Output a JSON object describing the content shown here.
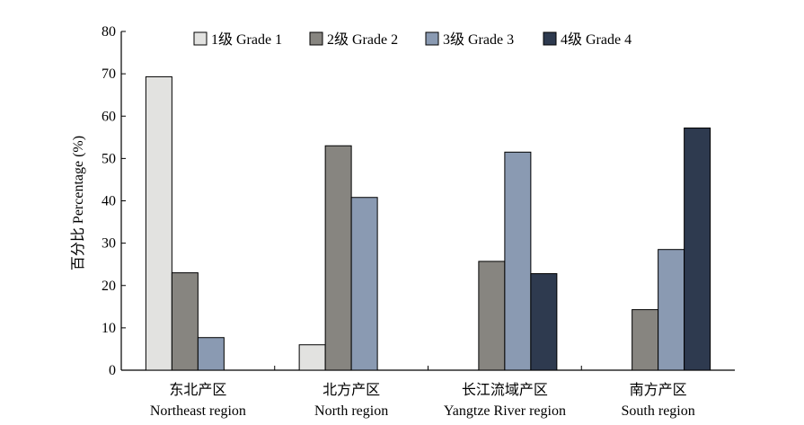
{
  "chart_data": {
    "type": "bar",
    "title": "",
    "ylabel": "百分比 Percentage (%)",
    "xlabel": "",
    "ylim": [
      0,
      80
    ],
    "yticks": [
      0,
      10,
      20,
      30,
      40,
      50,
      60,
      70,
      80
    ],
    "grid": false,
    "legend_position": "top",
    "categories": [
      {
        "zh": "东北产区",
        "en": "Northeast region"
      },
      {
        "zh": "北方产区",
        "en": "North region"
      },
      {
        "zh": "长江流域产区",
        "en": "Yangtze River region"
      },
      {
        "zh": "南方产区",
        "en": "South region"
      }
    ],
    "series": [
      {
        "name": "1级 Grade 1",
        "color": "#e2e2e0",
        "values": [
          69.3,
          6.0,
          null,
          null
        ]
      },
      {
        "name": "2级 Grade 2",
        "color": "#878580",
        "values": [
          23.0,
          53.0,
          25.7,
          14.3
        ]
      },
      {
        "name": "3级 Grade 3",
        "color": "#8a9ab2",
        "values": [
          7.7,
          40.8,
          51.5,
          28.5
        ]
      },
      {
        "name": "4级 Grade 4",
        "color": "#2e3a4f",
        "values": [
          null,
          null,
          22.8,
          57.2
        ]
      }
    ]
  }
}
